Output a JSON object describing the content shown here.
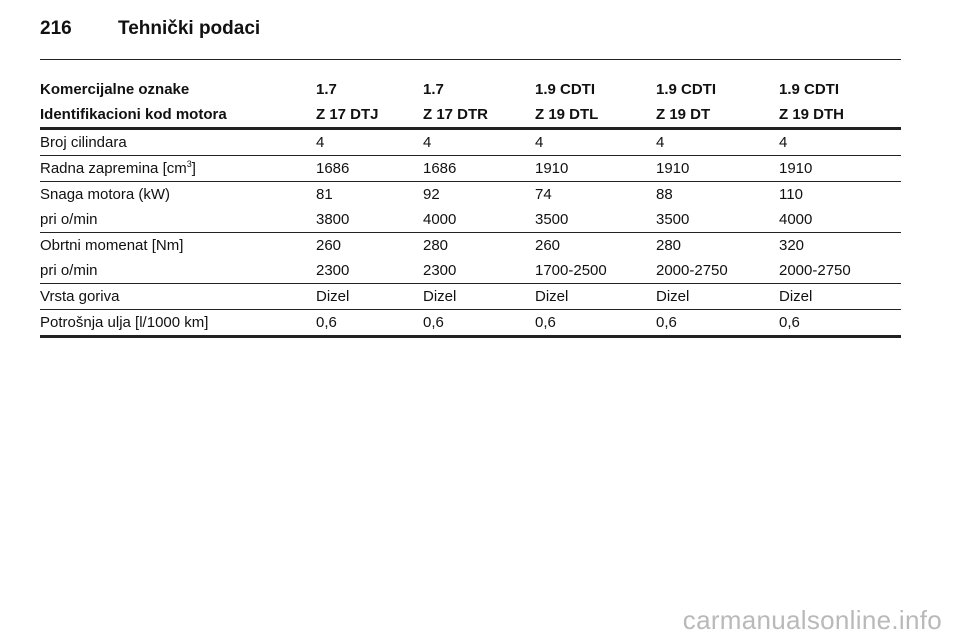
{
  "header": {
    "page_number": "216",
    "title": "Tehnički podaci"
  },
  "table": {
    "header_rows": [
      [
        "Komercijalne oznake",
        "1.7",
        "1.7",
        "1.9 CDTI",
        "1.9 CDTI",
        "1.9 CDTI"
      ],
      [
        "Identifikacioni kod motora",
        "Z 17 DTJ",
        "Z 17 DTR",
        "Z 19 DTL",
        "Z 19 DT",
        "Z 19 DTH"
      ]
    ],
    "rows": [
      [
        "Broj cilindara",
        "4",
        "4",
        "4",
        "4",
        "4"
      ],
      [
        "Radna zapremina [cm",
        "1686",
        "1686",
        "1910",
        "1910",
        "1910"
      ],
      [
        "Snaga motora (kW)",
        "81",
        "92",
        "74",
        "88",
        "110"
      ],
      [
        "pri o/min",
        "3800",
        "4000",
        "3500",
        "3500",
        "4000"
      ],
      [
        "Obrtni momenat [Nm]",
        "260",
        "280",
        "260",
        "280",
        "320"
      ],
      [
        "pri o/min",
        "2300",
        "2300",
        "1700-2500",
        "2000-2750",
        "2000-2750"
      ],
      [
        "Vrsta goriva",
        "Dizel",
        "Dizel",
        "Dizel",
        "Dizel",
        "Dizel"
      ],
      [
        "Potrošnja ulja [l/1000 km]",
        "0,6",
        "0,6",
        "0,6",
        "0,6",
        "0,6"
      ]
    ],
    "unit_superscript": "3",
    "unit_close": "]"
  },
  "watermark": "carmanualsonline.info"
}
